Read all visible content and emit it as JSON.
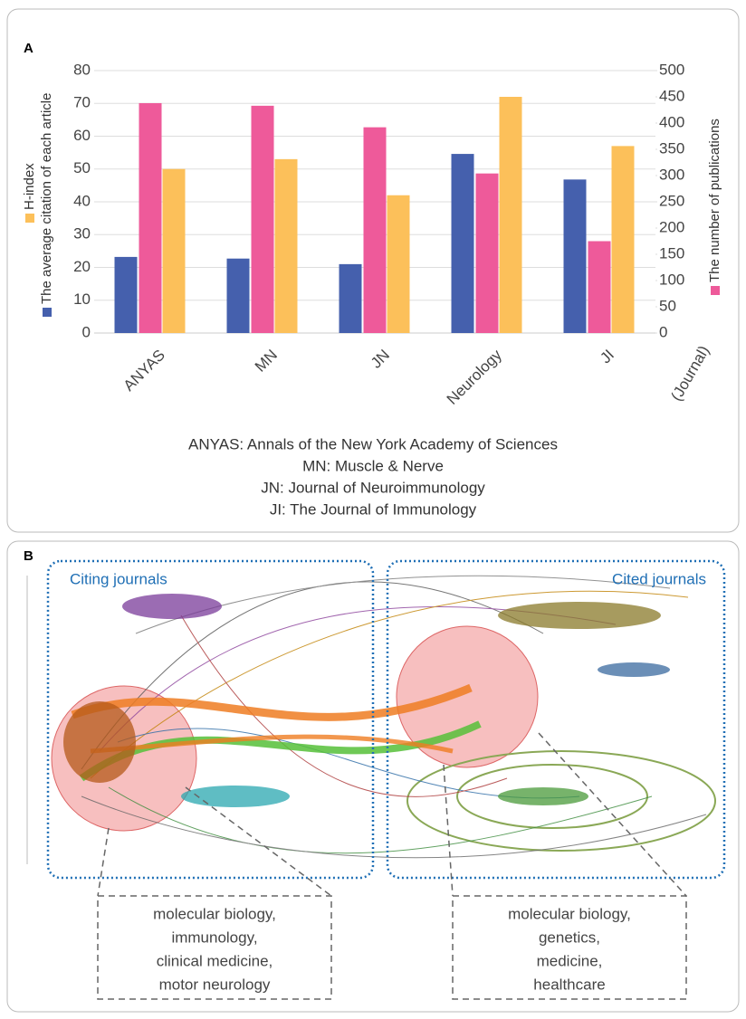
{
  "chart_data": {
    "type": "bar",
    "categories": [
      "ANYAS",
      "MN",
      "JN",
      "Neurology",
      "JI"
    ],
    "x_label": "(Journal)",
    "series": [
      {
        "name": "The average citation of each article",
        "color": "#4560ad",
        "values": [
          23.2,
          22.7,
          21,
          54.6,
          46.8
        ]
      },
      {
        "name": "The number of publications",
        "color": "#ee5a9a",
        "axis": "y2",
        "values": [
          438,
          433,
          392,
          304,
          175
        ]
      },
      {
        "name": "H-index",
        "color": "#fcc05a",
        "values": [
          50,
          53,
          42,
          72,
          57
        ]
      }
    ],
    "ylim": [
      0,
      80
    ],
    "yticks": [
      0,
      10,
      20,
      30,
      40,
      50,
      60,
      70,
      80
    ],
    "y2lim": [
      0,
      500
    ],
    "y2ticks": [
      0,
      50,
      100,
      150,
      200,
      250,
      300,
      350,
      400,
      450,
      500
    ],
    "grid": true,
    "notes": [
      "ANYAS: Annals of the New York Academy of Sciences",
      "MN: Muscle & Nerve",
      "JN: Journal of Neuroimmunology",
      "JI: The Journal of Immunology"
    ]
  },
  "panel_a": {
    "label": "A"
  },
  "panel_b": {
    "label": "B",
    "left_title": "Citing journals",
    "right_title": "Cited journals",
    "left_topics": [
      "molecular biology,",
      "immunology,",
      "clinical medicine,",
      "motor neurology"
    ],
    "right_topics": [
      "molecular biology,",
      "genetics,",
      "medicine,",
      "healthcare"
    ]
  }
}
